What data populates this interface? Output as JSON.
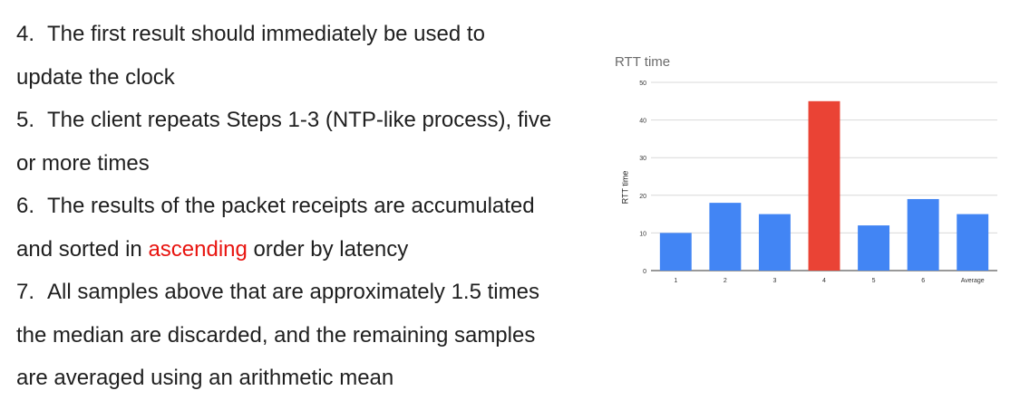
{
  "paragraph": {
    "lines": [
      {
        "num": "4.",
        "parts": [
          {
            "text": "The first result should immediately be used to",
            "highlight": false
          }
        ]
      },
      {
        "num": "",
        "parts": [
          {
            "text": "update the clock",
            "highlight": false
          }
        ]
      },
      {
        "num": "5.",
        "parts": [
          {
            "text": "The client repeats Steps 1-3 (NTP-like process), five",
            "highlight": false
          }
        ]
      },
      {
        "num": "",
        "parts": [
          {
            "text": "or more times",
            "highlight": false
          }
        ]
      },
      {
        "num": "6.",
        "parts": [
          {
            "text": "The results of the packet receipts are accumulated",
            "highlight": false
          }
        ]
      },
      {
        "num": "",
        "parts": [
          {
            "text": "and sorted in ",
            "highlight": false
          },
          {
            "text": "ascending",
            "highlight": true
          },
          {
            "text": " order by latency",
            "highlight": false
          }
        ]
      },
      {
        "num": "7.",
        "parts": [
          {
            "text": "All samples above that are approximately 1.5 times",
            "highlight": false
          }
        ]
      },
      {
        "num": "",
        "parts": [
          {
            "text": "the median are discarded, and the remaining samples",
            "highlight": false
          }
        ]
      },
      {
        "num": "",
        "parts": [
          {
            "text": "are averaged using an arithmetic mean",
            "highlight": false
          }
        ]
      }
    ],
    "highlight_color": "#e8140f"
  },
  "chart_data": {
    "type": "bar",
    "title": "RTT time",
    "xlabel": "",
    "ylabel": "RTT time",
    "categories": [
      "1",
      "2",
      "3",
      "4",
      "5",
      "6",
      "Average"
    ],
    "values": [
      10,
      18,
      15,
      45,
      12,
      19,
      15
    ],
    "ylim": [
      0,
      50
    ],
    "yticks": [
      0,
      10,
      20,
      30,
      40,
      50
    ],
    "grid": true,
    "bar_color": "#4285f4",
    "highlight_color": "#ea4335",
    "highlight_index": 3
  }
}
